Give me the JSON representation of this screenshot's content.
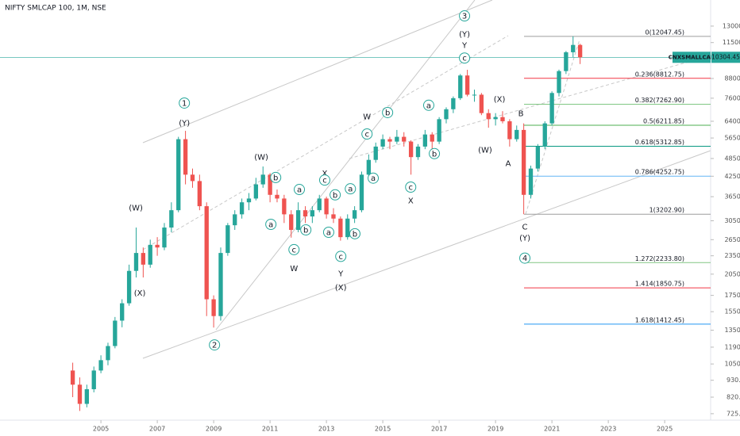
{
  "chart_data": {
    "type": "candlestick",
    "title": "NIFTY SMLCAP 100, 1M, NSE",
    "log_scale": true,
    "up_color": "#26a69a",
    "down_color": "#ef5350",
    "xlim": [
      2001.42,
      2026.63
    ],
    "xticks": [
      2005,
      2007,
      2009,
      2011,
      2013,
      2015,
      2017,
      2019,
      2021,
      2023,
      2025
    ],
    "ylim": [
      691,
      15790
    ],
    "yticks": [
      {
        "value": 725,
        "label": "725.00"
      },
      {
        "value": 820,
        "label": "820.00"
      },
      {
        "value": 930,
        "label": "930.00"
      },
      {
        "value": 1050,
        "label": "1050.00"
      },
      {
        "value": 1190,
        "label": "1190.00"
      },
      {
        "value": 1350,
        "label": "1350.00"
      },
      {
        "value": 1550,
        "label": "1550.00"
      },
      {
        "value": 1750,
        "label": "1750.00"
      },
      {
        "value": 2050,
        "label": "2050.00"
      },
      {
        "value": 2350,
        "label": "2350.00"
      },
      {
        "value": 2650,
        "label": "2650.00"
      },
      {
        "value": 3050,
        "label": "3050.00"
      },
      {
        "value": 3650,
        "label": "3650.00"
      },
      {
        "value": 4250,
        "label": "4250.00"
      },
      {
        "value": 4850,
        "label": "4850.00"
      },
      {
        "value": 5650,
        "label": "5650.00"
      },
      {
        "value": 6400,
        "label": "6400.00"
      },
      {
        "value": 7600,
        "label": "7600.00"
      },
      {
        "value": 8800,
        "label": "8800.00"
      },
      {
        "value": 11500,
        "label": "11500.00"
      },
      {
        "value": 13000,
        "label": "13000.00"
      }
    ],
    "x": [
      2004,
      2004.25,
      2004.5,
      2004.75,
      2005,
      2005.25,
      2005.5,
      2005.75,
      2006,
      2006.25,
      2006.5,
      2006.75,
      2007,
      2007.25,
      2007.5,
      2007.75,
      2008,
      2008.25,
      2008.5,
      2008.75,
      2009,
      2009.25,
      2009.5,
      2009.75,
      2010,
      2010.25,
      2010.5,
      2010.75,
      2011,
      2011.25,
      2011.5,
      2011.75,
      2012,
      2012.25,
      2012.5,
      2012.75,
      2013,
      2013.25,
      2013.5,
      2013.75,
      2014,
      2014.25,
      2014.5,
      2014.75,
      2015,
      2015.25,
      2015.5,
      2015.75,
      2016,
      2016.25,
      2016.5,
      2016.75,
      2017,
      2017.25,
      2017.5,
      2017.75,
      2018,
      2018.25,
      2018.5,
      2018.75,
      2019,
      2019.25,
      2019.5,
      2019.75,
      2020,
      2020.25,
      2020.5,
      2020.75,
      2021,
      2021.25,
      2021.5,
      2021.75,
      2022
    ],
    "open": [
      1000,
      900,
      780,
      870,
      1000,
      1080,
      1200,
      1450,
      1650,
      2100,
      2400,
      2200,
      2550,
      2500,
      2900,
      3300,
      5600,
      4300,
      4100,
      3400,
      1700,
      1500,
      2400,
      2950,
      3200,
      3500,
      3600,
      4000,
      4300,
      3700,
      3600,
      3200,
      2850,
      3300,
      3150,
      3300,
      3600,
      3200,
      3100,
      2700,
      3100,
      3300,
      4300,
      4800,
      5300,
      5600,
      5500,
      5700,
      5500,
      4900,
      5300,
      5800,
      5500,
      6500,
      7000,
      7600,
      9000,
      7800,
      7800,
      6800,
      6500,
      6600,
      6400,
      5600,
      6000,
      3700,
      4500,
      5300,
      6300,
      7900,
      9300,
      10700,
      11300
    ],
    "high": [
      1060,
      950,
      900,
      1030,
      1120,
      1230,
      1490,
      1700,
      2200,
      2900,
      2500,
      2650,
      2700,
      3000,
      3500,
      5700,
      5960,
      4500,
      4300,
      3500,
      1750,
      2500,
      3000,
      3300,
      3600,
      3750,
      4200,
      4570,
      4350,
      3850,
      3700,
      3300,
      3500,
      3400,
      3400,
      3700,
      3650,
      3350,
      3150,
      3200,
      3400,
      4400,
      5000,
      5460,
      5800,
      5700,
      6000,
      5900,
      5550,
      5400,
      6000,
      5900,
      6600,
      7100,
      7700,
      9100,
      9390,
      8100,
      7900,
      7000,
      6800,
      6900,
      6500,
      6200,
      6300,
      4600,
      5400,
      6400,
      8000,
      9400,
      10800,
      12047,
      11400
    ],
    "low": [
      820,
      740,
      760,
      850,
      980,
      1040,
      1180,
      1380,
      1620,
      2000,
      2000,
      2150,
      2350,
      2450,
      2800,
      3250,
      4000,
      3900,
      3300,
      1500,
      1377,
      1450,
      2350,
      2850,
      3100,
      3300,
      3550,
      3900,
      3500,
      3500,
      3000,
      2690,
      2800,
      3000,
      3000,
      3250,
      3100,
      3000,
      2630,
      2650,
      3000,
      3250,
      4200,
      4700,
      5200,
      5200,
      5400,
      5300,
      4300,
      4800,
      5200,
      5100,
      5400,
      6300,
      6800,
      7500,
      7700,
      7400,
      6700,
      6100,
      6200,
      6300,
      5300,
      5500,
      3203,
      3600,
      4400,
      5200,
      6200,
      7700,
      9100,
      10300,
      9800
    ],
    "close": [
      900,
      780,
      870,
      1000,
      1080,
      1200,
      1450,
      1650,
      2100,
      2400,
      2200,
      2550,
      2500,
      2900,
      3300,
      5600,
      4300,
      4100,
      3400,
      1700,
      1500,
      2400,
      2950,
      3200,
      3500,
      3600,
      4000,
      4300,
      3700,
      3600,
      3200,
      2850,
      3300,
      3150,
      3300,
      3600,
      3200,
      3100,
      2700,
      3100,
      3300,
      4300,
      4800,
      5300,
      5600,
      5500,
      5700,
      5500,
      4900,
      5300,
      5800,
      5500,
      6500,
      7000,
      7600,
      9000,
      7800,
      7800,
      6800,
      6500,
      6600,
      6400,
      5600,
      6000,
      3700,
      4500,
      5300,
      6300,
      7900,
      9300,
      10700,
      11300,
      10304.45
    ],
    "last_price": {
      "name": "CNXSMALLCAP",
      "value": 10304.45,
      "color": "#26a69a"
    },
    "fib_levels": [
      {
        "label": "0(12047.45)",
        "value": 12047.45,
        "color": "#9e9e9e"
      },
      {
        "label": "0.236(8812.75)",
        "value": 8812.75,
        "color": "#f23645"
      },
      {
        "label": "0.382(7262.90)",
        "value": 7262.9,
        "color": "#81c784"
      },
      {
        "label": "0.5(6211.85)",
        "value": 6211.85,
        "color": "#4caf50"
      },
      {
        "label": "0.618(5312.85)",
        "value": 5312.85,
        "color": "#089981"
      },
      {
        "label": "0.786(4252.75)",
        "value": 4252.75,
        "color": "#64b5f6"
      },
      {
        "label": "1(3202.90)",
        "value": 3202.9,
        "color": "#9e9e9e"
      },
      {
        "label": "1.272(2233.80)",
        "value": 2233.8,
        "color": "#81c784"
      },
      {
        "label": "1.414(1850.75)",
        "value": 1850.75,
        "color": "#f23645"
      },
      {
        "label": "1.618(1412.45)",
        "value": 1412.45,
        "color": "#2196f3"
      }
    ],
    "annotations": [
      {
        "text": "1",
        "x": 2007.96,
        "y": 7330,
        "color": "#26a69a",
        "circled": true
      },
      {
        "text": "(Y)",
        "x": 2007.96,
        "y": 6320,
        "color": "#7e57c2",
        "circled": false
      },
      {
        "text": "(W)",
        "x": 2006.24,
        "y": 3360,
        "color": "#7e57c2",
        "circled": false
      },
      {
        "text": "(X)",
        "x": 2006.38,
        "y": 1780,
        "color": "#7e57c2",
        "circled": false
      },
      {
        "text": "2",
        "x": 2009.03,
        "y": 1210,
        "color": "#26a69a",
        "circled": true
      },
      {
        "text": "(W)",
        "x": 2010.69,
        "y": 4910,
        "color": "#7e57c2",
        "circled": false
      },
      {
        "text": "b",
        "x": 2011.2,
        "y": 4210,
        "color": "#26a69a",
        "circled": true
      },
      {
        "text": "a",
        "x": 2011.03,
        "y": 2970,
        "color": "#26a69a",
        "circled": true
      },
      {
        "text": "a",
        "x": 2012.04,
        "y": 3850,
        "color": "#26a69a",
        "circled": true
      },
      {
        "text": "b",
        "x": 2012.27,
        "y": 2850,
        "color": "#26a69a",
        "circled": true
      },
      {
        "text": "c",
        "x": 2011.85,
        "y": 2460,
        "color": "#26a69a",
        "circled": true
      },
      {
        "text": "W",
        "x": 2011.85,
        "y": 2140,
        "color": "#2196f3",
        "circled": false
      },
      {
        "text": "X",
        "x": 2012.94,
        "y": 4350,
        "color": "#2196f3",
        "circled": false
      },
      {
        "text": "c",
        "x": 2012.94,
        "y": 4130,
        "color": "#26a69a",
        "circled": true
      },
      {
        "text": "b",
        "x": 2013.31,
        "y": 3700,
        "color": "#26a69a",
        "circled": true
      },
      {
        "text": "a",
        "x": 2013.08,
        "y": 2800,
        "color": "#26a69a",
        "circled": true
      },
      {
        "text": "c",
        "x": 2013.51,
        "y": 2340,
        "color": "#26a69a",
        "circled": true
      },
      {
        "text": "Y",
        "x": 2013.51,
        "y": 2060,
        "color": "#2196f3",
        "circled": false
      },
      {
        "text": "(X)",
        "x": 2013.51,
        "y": 1860,
        "color": "#7e57c2",
        "circled": false
      },
      {
        "text": "b",
        "x": 2014.01,
        "y": 2770,
        "color": "#26a69a",
        "circled": true
      },
      {
        "text": "a",
        "x": 2013.85,
        "y": 3870,
        "color": "#26a69a",
        "circled": true
      },
      {
        "text": "a",
        "x": 2014.66,
        "y": 4190,
        "color": "#26a69a",
        "circled": true
      },
      {
        "text": "c",
        "x": 2014.44,
        "y": 5820,
        "color": "#26a69a",
        "circled": true
      },
      {
        "text": "W",
        "x": 2014.44,
        "y": 6630,
        "color": "#2196f3",
        "circled": false
      },
      {
        "text": "b",
        "x": 2015.17,
        "y": 6830,
        "color": "#26a69a",
        "circled": true
      },
      {
        "text": "a",
        "x": 2016.63,
        "y": 7210,
        "color": "#26a69a",
        "circled": true
      },
      {
        "text": "b",
        "x": 2016.83,
        "y": 5030,
        "color": "#26a69a",
        "circled": true
      },
      {
        "text": "c",
        "x": 2015.99,
        "y": 3920,
        "color": "#26a69a",
        "circled": true
      },
      {
        "text": "X",
        "x": 2015.99,
        "y": 3550,
        "color": "#2196f3",
        "circled": false
      },
      {
        "text": "c",
        "x": 2017.9,
        "y": 10250,
        "color": "#26a69a",
        "circled": true
      },
      {
        "text": "Y",
        "x": 2017.9,
        "y": 11270,
        "color": "#2196f3",
        "circled": false
      },
      {
        "text": "(Y)",
        "x": 2017.9,
        "y": 12240,
        "color": "#7e57c2",
        "circled": false
      },
      {
        "text": "3",
        "x": 2017.9,
        "y": 14030,
        "color": "#26a69a",
        "circled": true
      },
      {
        "text": "(X)",
        "x": 2019.14,
        "y": 7550,
        "color": "#7e57c2",
        "circled": false
      },
      {
        "text": "(W)",
        "x": 2018.63,
        "y": 5180,
        "color": "#7e57c2",
        "circled": false
      },
      {
        "text": "B",
        "x": 2019.9,
        "y": 6790,
        "color": "#2196f3",
        "circled": false
      },
      {
        "text": "A",
        "x": 2019.45,
        "y": 4680,
        "color": "#2196f3",
        "circled": false
      },
      {
        "text": "C",
        "x": 2020.04,
        "y": 2920,
        "color": "#2196f3",
        "circled": false
      },
      {
        "text": "(Y)",
        "x": 2020.04,
        "y": 2690,
        "color": "#7e57c2",
        "circled": false
      },
      {
        "text": "4",
        "x": 2020.04,
        "y": 2310,
        "color": "#26a69a",
        "circled": true
      }
    ]
  }
}
